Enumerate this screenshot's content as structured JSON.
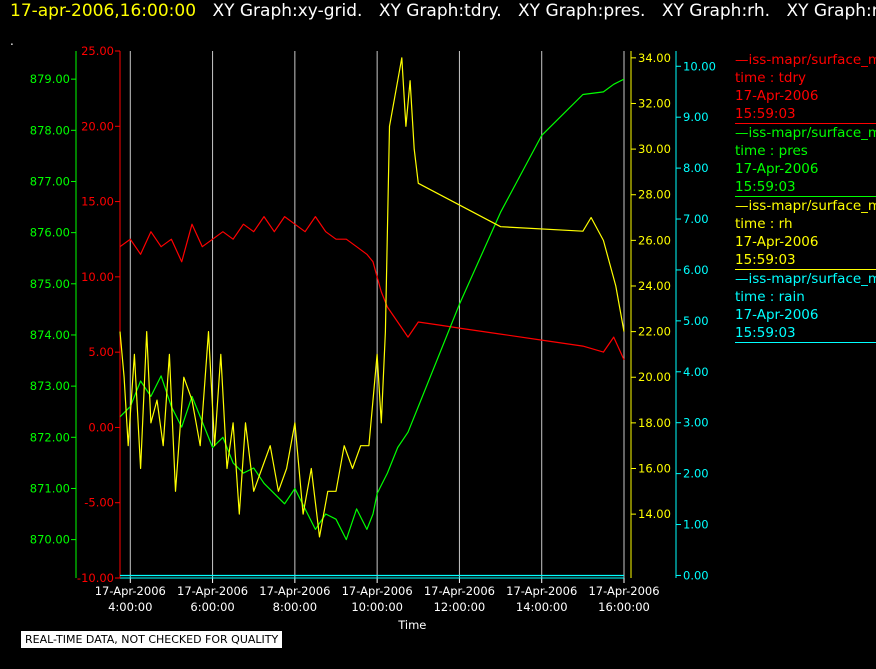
{
  "header": {
    "time": "17-apr-2006,16:00:00",
    "items": [
      "XY Graph:xy-grid.",
      "XY Graph:tdry.",
      "XY Graph:pres.",
      "XY Graph:rh.",
      "XY Graph:rain"
    ],
    "dot": "."
  },
  "footer_note": "REAL-TIME DATA, NOT CHECKED FOR QUALITY",
  "colors": {
    "tdry": "#ff0000",
    "pres": "#00ff00",
    "rh": "#ffff00",
    "rain": "#00ffff",
    "grid": "#c8c8c8",
    "axis_label": "#ffffff"
  },
  "legend": [
    {
      "key": "tdry",
      "name": "—iss-mapr/surface_m",
      "var": "time : tdry",
      "date": "17-Apr-2006",
      "time": "15:59:03"
    },
    {
      "key": "pres",
      "name": "—iss-mapr/surface_m",
      "var": "time : pres",
      "date": "17-Apr-2006",
      "time": "15:59:03"
    },
    {
      "key": "rh",
      "name": "—iss-mapr/surface_m",
      "var": "time : rh",
      "date": "17-Apr-2006",
      "time": "15:59:03"
    },
    {
      "key": "rain",
      "name": "—iss-mapr/surface_m",
      "var": "time : rain",
      "date": "17-Apr-2006",
      "time": "15:59:03"
    }
  ],
  "chart_data": {
    "type": "line",
    "xlabel": "Time",
    "xlim": [
      3.75,
      16.0
    ],
    "x_ticks": [
      {
        "value": 4,
        "date": "17-Apr-2006",
        "time": "4:00:00"
      },
      {
        "value": 6,
        "date": "17-Apr-2006",
        "time": "6:00:00"
      },
      {
        "value": 8,
        "date": "17-Apr-2006",
        "time": "8:00:00"
      },
      {
        "value": 10,
        "date": "17-Apr-2006",
        "time": "10:00:00"
      },
      {
        "value": 12,
        "date": "17-Apr-2006",
        "time": "12:00:00"
      },
      {
        "value": 14,
        "date": "17-Apr-2006",
        "time": "14:00:00"
      },
      {
        "value": 16,
        "date": "17-Apr-2006",
        "time": "16:00:00"
      }
    ],
    "grid": true,
    "axes": {
      "pres": {
        "side": "left-outer",
        "lim": [
          869.25,
          879.55
        ],
        "ticks": [
          "870.00",
          "871.00",
          "872.00",
          "873.00",
          "874.00",
          "875.00",
          "876.00",
          "877.00",
          "878.00",
          "879.00"
        ]
      },
      "tdry": {
        "side": "left-inner",
        "lim": [
          -10,
          25
        ],
        "ticks": [
          "-10.00",
          "-5.00",
          "0.00",
          "5.00",
          "10.00",
          "15.00",
          "20.00",
          "25.00"
        ]
      },
      "rh": {
        "side": "right-inner",
        "lim": [
          11.2,
          34.3
        ],
        "ticks": [
          "14.00",
          "16.00",
          "18.00",
          "20.00",
          "22.00",
          "24.00",
          "26.00",
          "28.00",
          "30.00",
          "32.00",
          "34.00"
        ]
      },
      "rain": {
        "side": "right-outer",
        "lim": [
          -0.05,
          10.3
        ],
        "ticks": [
          "0.00",
          "1.00",
          "2.00",
          "3.00",
          "4.00",
          "5.00",
          "6.00",
          "7.00",
          "8.00",
          "9.00",
          "10.00"
        ]
      }
    },
    "series": [
      {
        "name": "tdry",
        "axis": "tdry",
        "x": [
          3.75,
          4.0,
          4.25,
          4.5,
          4.75,
          5.0,
          5.25,
          5.5,
          5.75,
          6.0,
          6.25,
          6.5,
          6.75,
          7.0,
          7.25,
          7.5,
          7.75,
          8.0,
          8.25,
          8.5,
          8.75,
          9.0,
          9.25,
          9.5,
          9.75,
          9.9,
          10.0,
          10.1,
          10.25,
          10.5,
          10.75,
          11.0,
          11.5,
          12.0,
          13.0,
          14.0,
          15.0,
          15.5,
          15.75,
          16.0
        ],
        "y": [
          12,
          12.5,
          11.5,
          13,
          12,
          12.5,
          11,
          13.5,
          12,
          12.5,
          13,
          12.5,
          13.5,
          13,
          14,
          13,
          14,
          13.5,
          13,
          14,
          13,
          12.5,
          12.5,
          12,
          11.5,
          11,
          10,
          9,
          8,
          7,
          6,
          7,
          6.8,
          6.6,
          6.2,
          5.8,
          5.4,
          5,
          6,
          4.5
        ]
      },
      {
        "name": "pres",
        "axis": "pres",
        "x": [
          3.75,
          4.0,
          4.25,
          4.5,
          4.75,
          5.0,
          5.25,
          5.5,
          5.75,
          6.0,
          6.25,
          6.5,
          6.75,
          7.0,
          7.25,
          7.5,
          7.75,
          8.0,
          8.25,
          8.5,
          8.75,
          9.0,
          9.25,
          9.5,
          9.75,
          9.9,
          10.0,
          10.25,
          10.5,
          10.75,
          11.0,
          11.5,
          12.0,
          13.0,
          14.0,
          15.0,
          15.5,
          15.75,
          16.0
        ],
        "y": [
          872.4,
          872.6,
          873.1,
          872.8,
          873.2,
          872.6,
          872.2,
          872.8,
          872.3,
          871.8,
          872.0,
          871.5,
          871.3,
          871.4,
          871.1,
          870.9,
          870.7,
          871.0,
          870.6,
          870.2,
          870.5,
          870.4,
          870.0,
          870.6,
          870.2,
          870.5,
          870.9,
          871.3,
          871.8,
          872.1,
          872.6,
          873.6,
          874.6,
          876.4,
          877.9,
          878.7,
          878.75,
          878.9,
          879.0
        ]
      },
      {
        "name": "rh",
        "axis": "rh",
        "x": [
          3.75,
          3.85,
          3.95,
          4.1,
          4.25,
          4.4,
          4.5,
          4.65,
          4.8,
          4.95,
          5.1,
          5.3,
          5.5,
          5.7,
          5.9,
          6.05,
          6.2,
          6.35,
          6.5,
          6.65,
          6.8,
          7.0,
          7.2,
          7.4,
          7.6,
          7.8,
          8.0,
          8.2,
          8.4,
          8.6,
          8.8,
          9.0,
          9.2,
          9.4,
          9.6,
          9.8,
          9.9,
          10.0,
          10.1,
          10.2,
          10.3,
          10.4,
          10.5,
          10.6,
          10.7,
          10.8,
          10.9,
          11.0,
          13.0,
          15.0,
          15.2,
          15.5,
          15.8,
          16.0
        ],
        "y": [
          22,
          20,
          17,
          21,
          16,
          22,
          18,
          19,
          17,
          21,
          15,
          20,
          19,
          17,
          22,
          17,
          21,
          16,
          18,
          14,
          18,
          15,
          16,
          17,
          15,
          16,
          18,
          14,
          16,
          13,
          15,
          15,
          17,
          16,
          17,
          17,
          19,
          21,
          18,
          22,
          31,
          32,
          33,
          34,
          31,
          33,
          30,
          28.5,
          26.6,
          26.4,
          27,
          26,
          24,
          22
        ]
      },
      {
        "name": "rain",
        "axis": "rain",
        "x": [
          3.75,
          16.0
        ],
        "y": [
          0.0,
          0.0
        ]
      }
    ]
  }
}
